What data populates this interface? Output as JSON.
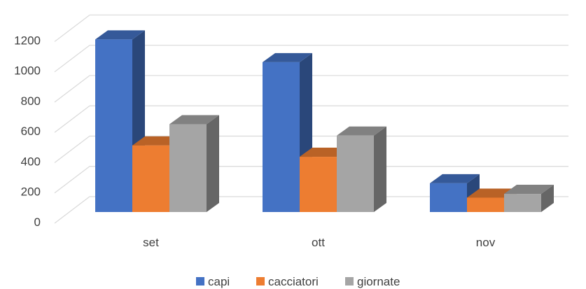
{
  "chart_data": {
    "type": "bar",
    "style": "3d-clustered-column",
    "categories": [
      "set",
      "ott",
      "nov"
    ],
    "series": [
      {
        "name": "capi",
        "values": [
          1140,
          990,
          190
        ],
        "color": "#4472C4"
      },
      {
        "name": "cacciatori",
        "values": [
          440,
          365,
          95
        ],
        "color": "#ED7D31"
      },
      {
        "name": "giornate",
        "values": [
          580,
          505,
          120
        ],
        "color": "#A5A5A5"
      }
    ],
    "yticks": [
      "0",
      "200",
      "400",
      "600",
      "800",
      "1000",
      "1200"
    ],
    "ylim": [
      0,
      1300
    ],
    "grid": true,
    "legend_position": "bottom"
  }
}
